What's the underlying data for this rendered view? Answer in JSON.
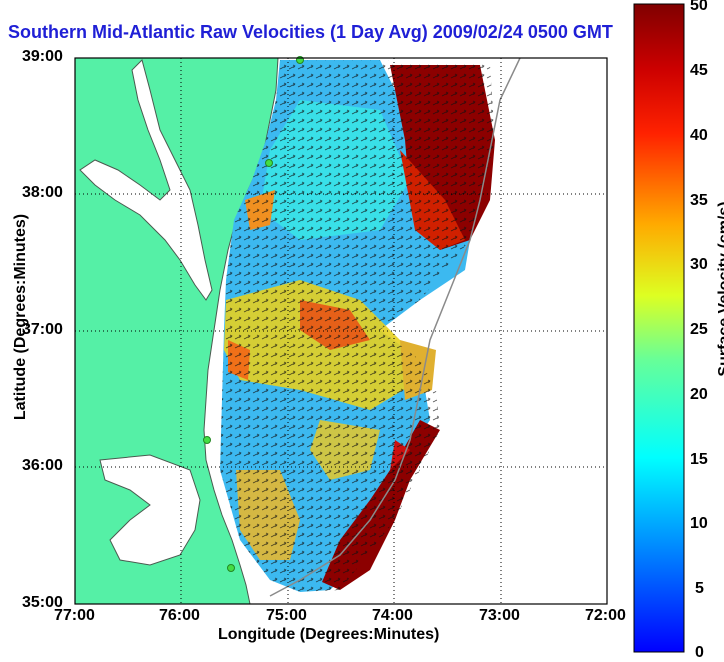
{
  "title": "Southern Mid-Atlantic Raw Velocities (1 Day Avg) 2009/02/24 0500 GMT",
  "axes": {
    "xlabel": "Longitude (Degrees:Minutes)",
    "ylabel": "Latitude (Degrees:Minutes)",
    "xticks": [
      "77:00",
      "76:00",
      "75:00",
      "74:00",
      "73:00",
      "72:00"
    ],
    "yticks": [
      "39:00",
      "38:00",
      "37:00",
      "36:00",
      "35:00"
    ]
  },
  "colorbar": {
    "label": "Surface Velocity (cm/s)",
    "ticks": [
      "50",
      "45",
      "40",
      "35",
      "30",
      "25",
      "20",
      "15",
      "10",
      "5",
      "0"
    ],
    "range": [
      0,
      50
    ],
    "colormap": "jet"
  },
  "colors": {
    "land": "#55f0a6",
    "ocean": "#ffffff",
    "coast": "#4a5a4f",
    "bathymetry": "#8a8a8a",
    "station": "#44dd44"
  },
  "map": {
    "lon_range": [
      -77,
      -72
    ],
    "lat_range": [
      35,
      39
    ],
    "grid": "dotted"
  }
}
